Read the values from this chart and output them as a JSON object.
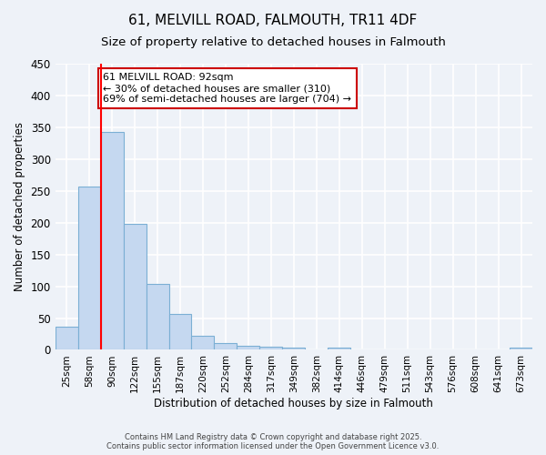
{
  "title1": "61, MELVILL ROAD, FALMOUTH, TR11 4DF",
  "title2": "Size of property relative to detached houses in Falmouth",
  "xlabel": "Distribution of detached houses by size in Falmouth",
  "ylabel": "Number of detached properties",
  "categories": [
    "25sqm",
    "58sqm",
    "90sqm",
    "122sqm",
    "155sqm",
    "187sqm",
    "220sqm",
    "252sqm",
    "284sqm",
    "317sqm",
    "349sqm",
    "382sqm",
    "414sqm",
    "446sqm",
    "479sqm",
    "511sqm",
    "543sqm",
    "576sqm",
    "608sqm",
    "641sqm",
    "673sqm"
  ],
  "values": [
    37,
    257,
    342,
    198,
    103,
    57,
    22,
    11,
    7,
    5,
    3,
    0,
    3,
    0,
    0,
    0,
    0,
    0,
    0,
    0,
    3
  ],
  "bar_color": "#c5d8f0",
  "bar_edge_color": "#7bafd4",
  "redline_x": 1.5,
  "annotation_line1": "61 MELVILL ROAD: 92sqm",
  "annotation_line2": "← 30% of detached houses are smaller (310)",
  "annotation_line3": "69% of semi-detached houses are larger (704) →",
  "annotation_box_color": "#ffffff",
  "annotation_box_edge_color": "#cc0000",
  "ylim": [
    0,
    450
  ],
  "yticks": [
    0,
    50,
    100,
    150,
    200,
    250,
    300,
    350,
    400,
    450
  ],
  "background_color": "#eef2f8",
  "grid_color": "#ffffff",
  "footer1": "Contains HM Land Registry data © Crown copyright and database right 2025.",
  "footer2": "Contains public sector information licensed under the Open Government Licence v3.0."
}
